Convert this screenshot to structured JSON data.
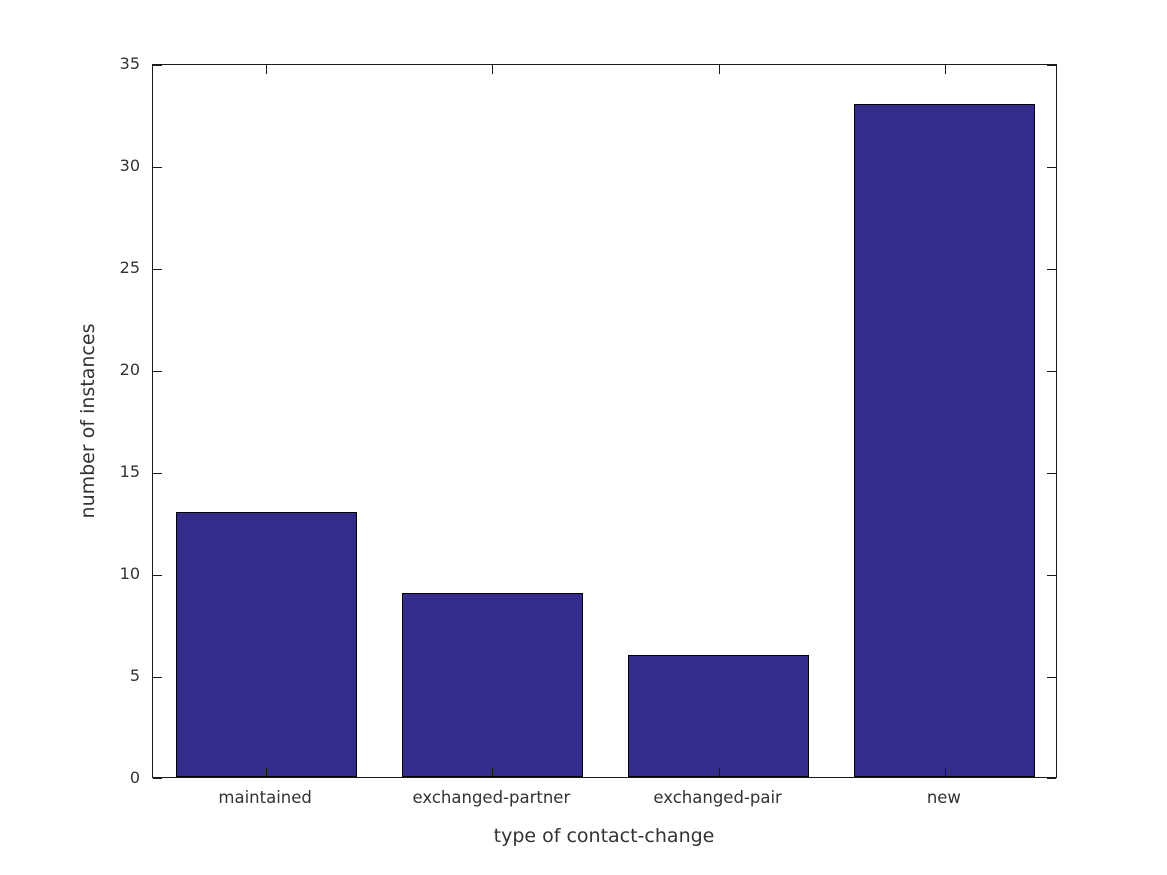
{
  "chart_data": {
    "type": "bar",
    "title": "",
    "xlabel": "type of contact-change",
    "ylabel": "number of instances",
    "categories": [
      "maintained",
      "exchanged-partner",
      "exchanged-pair",
      "new"
    ],
    "values": [
      13,
      9,
      6,
      33
    ],
    "ylim": [
      0,
      35
    ],
    "yticks": [
      0,
      5,
      10,
      15,
      20,
      25,
      30,
      35
    ],
    "bar_width_fraction": 0.8,
    "grid": false,
    "legend": null,
    "box": true,
    "tick_direction": "in",
    "colors": {
      "bar_fill": "#342C8C",
      "bar_edge": "#000000",
      "axis": "#1a1a1a",
      "text": "#333333",
      "background": "#ffffff"
    }
  }
}
